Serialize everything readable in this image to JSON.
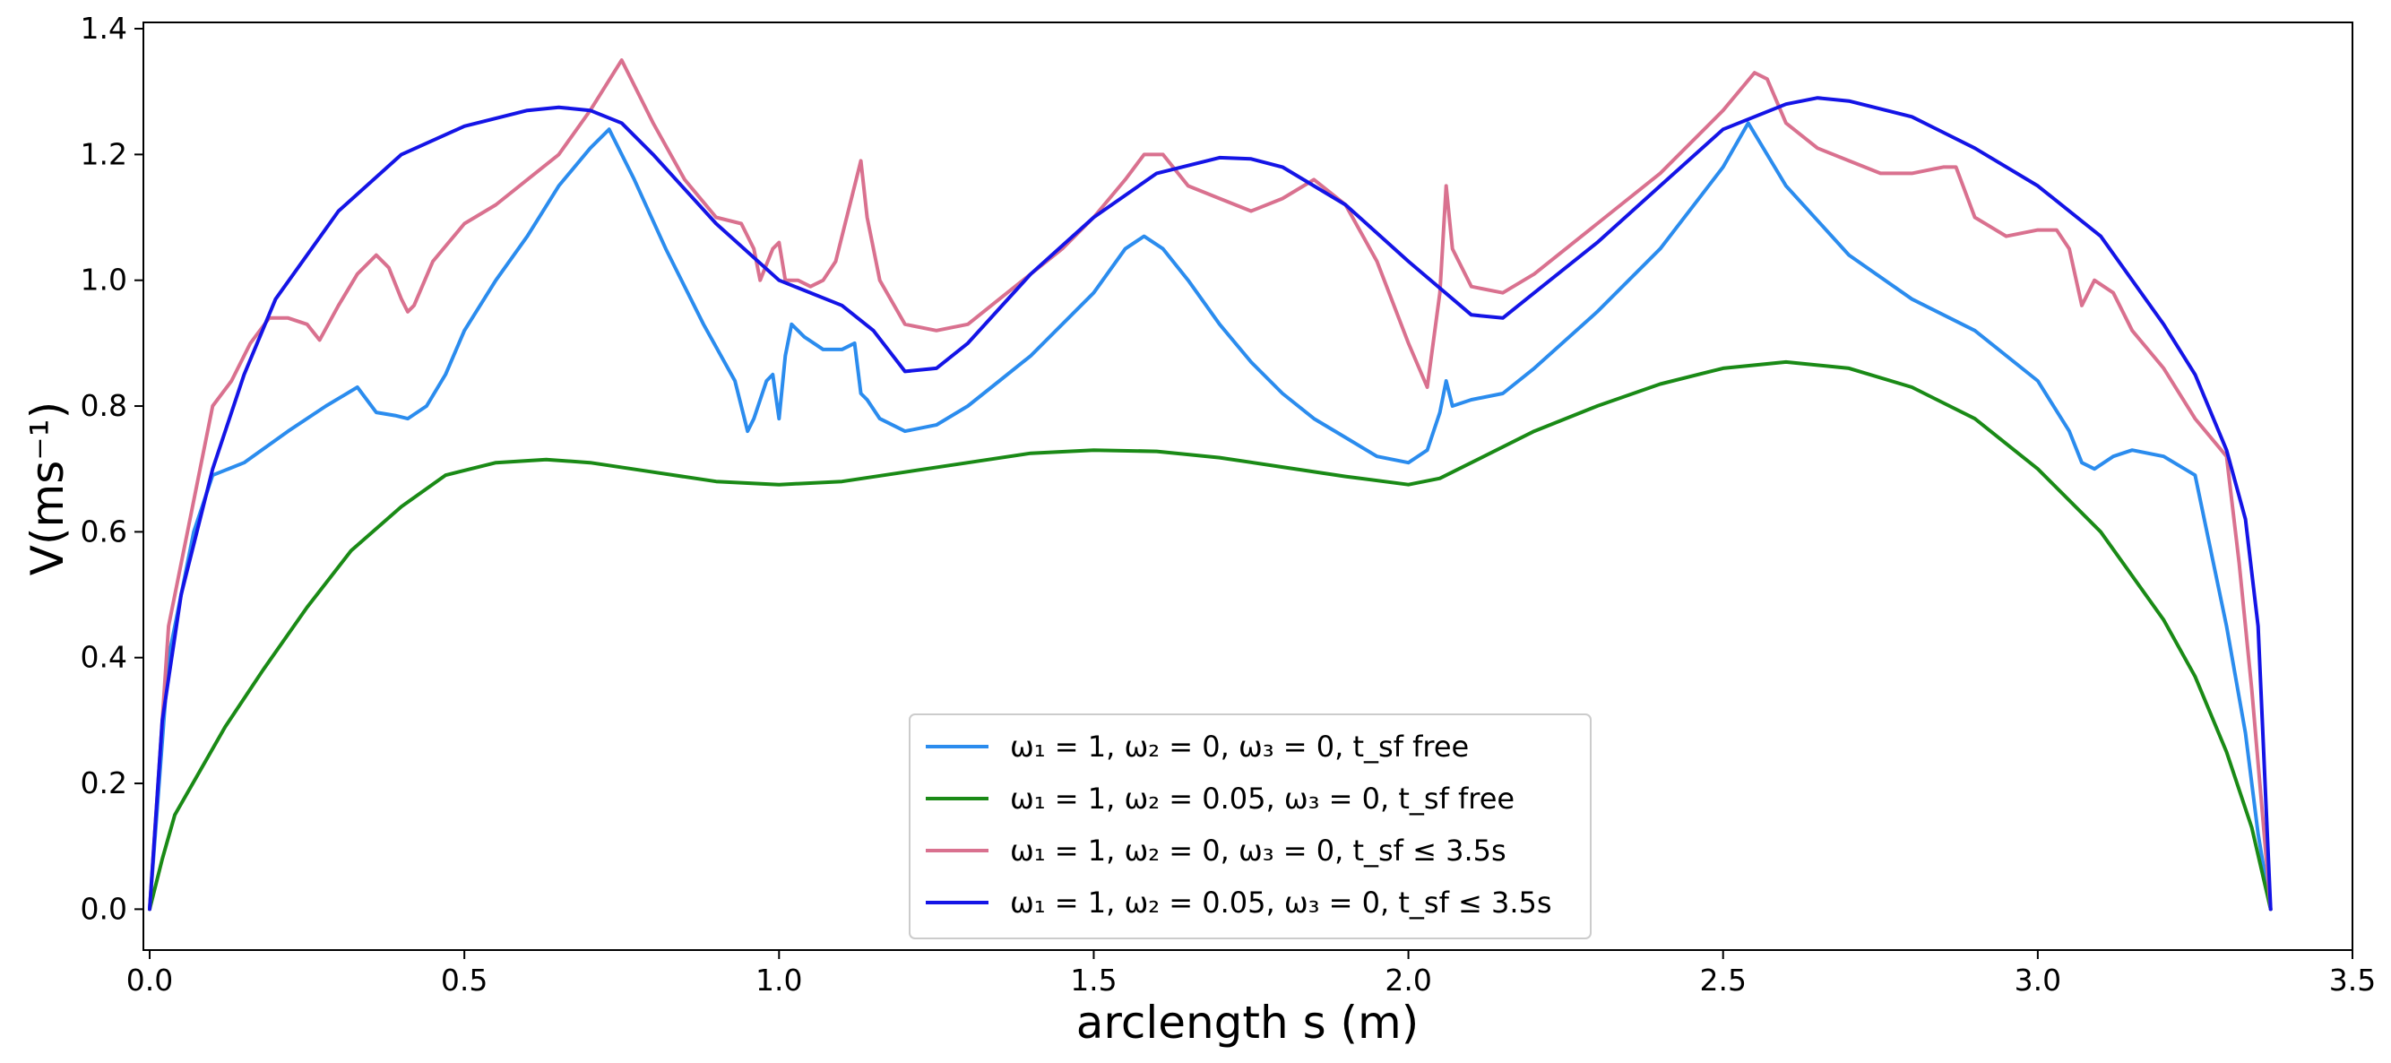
{
  "chart_data": {
    "type": "line",
    "title": "",
    "xlabel": "arclength s (m)",
    "ylabel": "V(ms⁻¹)",
    "xlim": [
      -0.01,
      3.5
    ],
    "ylim": [
      -0.065,
      1.41
    ],
    "xticks": [
      0.0,
      0.5,
      1.0,
      1.5,
      2.0,
      2.5,
      3.0,
      3.5
    ],
    "xtick_labels": [
      "0.0",
      "0.5",
      "1.0",
      "1.5",
      "2.0",
      "2.5",
      "3.0",
      "3.5"
    ],
    "yticks": [
      0.0,
      0.2,
      0.4,
      0.6,
      0.8,
      1.0,
      1.2,
      1.4
    ],
    "ytick_labels": [
      "0.0",
      "0.2",
      "0.4",
      "0.6",
      "0.8",
      "1.0",
      "1.2",
      "1.4"
    ],
    "legend_position": "lower-center",
    "series": [
      {
        "name": "ω₁ = 1, ω₂ = 0, ω₃ = 0, t_sf free",
        "color": "#2b8cee",
        "x": [
          0,
          0.03,
          0.07,
          0.1,
          0.15,
          0.22,
          0.28,
          0.33,
          0.36,
          0.39,
          0.41,
          0.44,
          0.47,
          0.5,
          0.55,
          0.6,
          0.65,
          0.7,
          0.73,
          0.77,
          0.82,
          0.88,
          0.93,
          0.95,
          0.96,
          0.98,
          0.99,
          1.0,
          1.01,
          1.02,
          1.04,
          1.07,
          1.1,
          1.12,
          1.13,
          1.14,
          1.16,
          1.2,
          1.25,
          1.3,
          1.35,
          1.4,
          1.45,
          1.5,
          1.55,
          1.58,
          1.61,
          1.65,
          1.7,
          1.75,
          1.8,
          1.85,
          1.9,
          1.95,
          2.0,
          2.03,
          2.05,
          2.06,
          2.07,
          2.1,
          2.15,
          2.2,
          2.3,
          2.4,
          2.5,
          2.54,
          2.6,
          2.7,
          2.8,
          2.9,
          3.0,
          3.05,
          3.07,
          3.09,
          3.12,
          3.15,
          3.2,
          3.25,
          3.3,
          3.33,
          3.35,
          3.37
        ],
        "values": [
          0,
          0.4,
          0.6,
          0.69,
          0.71,
          0.76,
          0.8,
          0.83,
          0.79,
          0.785,
          0.78,
          0.8,
          0.85,
          0.92,
          1.0,
          1.07,
          1.15,
          1.21,
          1.24,
          1.16,
          1.05,
          0.93,
          0.84,
          0.76,
          0.78,
          0.84,
          0.85,
          0.78,
          0.88,
          0.93,
          0.91,
          0.89,
          0.89,
          0.9,
          0.82,
          0.81,
          0.78,
          0.76,
          0.77,
          0.8,
          0.84,
          0.88,
          0.93,
          0.98,
          1.05,
          1.07,
          1.05,
          1.0,
          0.93,
          0.87,
          0.82,
          0.78,
          0.75,
          0.72,
          0.71,
          0.73,
          0.79,
          0.84,
          0.8,
          0.81,
          0.82,
          0.86,
          0.95,
          1.05,
          1.18,
          1.25,
          1.15,
          1.04,
          0.97,
          0.92,
          0.84,
          0.76,
          0.71,
          0.7,
          0.72,
          0.73,
          0.72,
          0.69,
          0.45,
          0.28,
          0.12,
          0
        ]
      },
      {
        "name": "ω₁ = 1, ω₂ = 0.05, ω₃ = 0, t_sf free",
        "color": "#1a8a16",
        "x": [
          0,
          0.02,
          0.04,
          0.08,
          0.12,
          0.18,
          0.25,
          0.32,
          0.4,
          0.47,
          0.55,
          0.63,
          0.7,
          0.8,
          0.9,
          1.0,
          1.1,
          1.2,
          1.3,
          1.4,
          1.5,
          1.6,
          1.7,
          1.8,
          1.9,
          2.0,
          2.05,
          2.1,
          2.2,
          2.3,
          2.4,
          2.5,
          2.6,
          2.7,
          2.8,
          2.9,
          3.0,
          3.1,
          3.2,
          3.25,
          3.3,
          3.34,
          3.37
        ],
        "values": [
          0,
          0.08,
          0.15,
          0.22,
          0.29,
          0.38,
          0.48,
          0.57,
          0.64,
          0.69,
          0.71,
          0.715,
          0.71,
          0.695,
          0.68,
          0.675,
          0.68,
          0.695,
          0.71,
          0.725,
          0.73,
          0.728,
          0.718,
          0.703,
          0.688,
          0.675,
          0.685,
          0.71,
          0.76,
          0.8,
          0.835,
          0.86,
          0.87,
          0.86,
          0.83,
          0.78,
          0.7,
          0.6,
          0.46,
          0.37,
          0.25,
          0.13,
          0
        ]
      },
      {
        "name": "ω₁ = 1, ω₂ = 0, ω₃ = 0, t_sf ≤ 3.5s",
        "color": "#d9718f",
        "x": [
          0,
          0.03,
          0.06,
          0.1,
          0.13,
          0.16,
          0.19,
          0.22,
          0.25,
          0.27,
          0.3,
          0.33,
          0.36,
          0.38,
          0.4,
          0.41,
          0.42,
          0.45,
          0.5,
          0.55,
          0.6,
          0.65,
          0.7,
          0.75,
          0.8,
          0.85,
          0.9,
          0.94,
          0.96,
          0.97,
          0.99,
          1.0,
          1.01,
          1.03,
          1.05,
          1.07,
          1.09,
          1.12,
          1.13,
          1.14,
          1.16,
          1.2,
          1.25,
          1.3,
          1.35,
          1.4,
          1.45,
          1.5,
          1.55,
          1.58,
          1.61,
          1.65,
          1.7,
          1.75,
          1.8,
          1.85,
          1.9,
          1.95,
          2.0,
          2.03,
          2.05,
          2.06,
          2.07,
          2.1,
          2.15,
          2.2,
          2.3,
          2.4,
          2.45,
          2.5,
          2.55,
          2.57,
          2.6,
          2.65,
          2.7,
          2.75,
          2.8,
          2.85,
          2.87,
          2.9,
          2.95,
          3.0,
          3.03,
          3.05,
          3.07,
          3.09,
          3.12,
          3.15,
          3.2,
          3.25,
          3.3,
          3.32,
          3.34,
          3.37
        ],
        "values": [
          0,
          0.45,
          0.6,
          0.8,
          0.84,
          0.9,
          0.94,
          0.94,
          0.93,
          0.905,
          0.96,
          1.01,
          1.04,
          1.02,
          0.97,
          0.95,
          0.96,
          1.03,
          1.09,
          1.12,
          1.16,
          1.2,
          1.27,
          1.35,
          1.25,
          1.16,
          1.1,
          1.09,
          1.05,
          1.0,
          1.05,
          1.06,
          1.0,
          1.0,
          0.99,
          1.0,
          1.03,
          1.15,
          1.19,
          1.1,
          1.0,
          0.93,
          0.92,
          0.93,
          0.97,
          1.01,
          1.05,
          1.1,
          1.16,
          1.2,
          1.2,
          1.15,
          1.13,
          1.11,
          1.13,
          1.16,
          1.12,
          1.03,
          0.9,
          0.83,
          0.98,
          1.15,
          1.05,
          0.99,
          0.98,
          1.01,
          1.09,
          1.17,
          1.22,
          1.27,
          1.33,
          1.32,
          1.25,
          1.21,
          1.19,
          1.17,
          1.17,
          1.18,
          1.18,
          1.1,
          1.07,
          1.08,
          1.08,
          1.05,
          0.96,
          1.0,
          0.98,
          0.92,
          0.86,
          0.78,
          0.72,
          0.55,
          0.35,
          0
        ]
      },
      {
        "name": "ω₁ = 1, ω₂ = 0.05, ω₃ = 0, t_sf ≤ 3.5s",
        "color": "#1414e6",
        "x": [
          0,
          0.02,
          0.05,
          0.1,
          0.15,
          0.2,
          0.3,
          0.4,
          0.5,
          0.6,
          0.65,
          0.7,
          0.75,
          0.8,
          0.9,
          1.0,
          1.1,
          1.15,
          1.2,
          1.25,
          1.3,
          1.4,
          1.5,
          1.6,
          1.7,
          1.75,
          1.8,
          1.9,
          2.0,
          2.1,
          2.15,
          2.2,
          2.3,
          2.4,
          2.5,
          2.6,
          2.65,
          2.7,
          2.8,
          2.9,
          3.0,
          3.1,
          3.2,
          3.25,
          3.3,
          3.33,
          3.35,
          3.37
        ],
        "values": [
          0,
          0.3,
          0.5,
          0.7,
          0.85,
          0.97,
          1.11,
          1.2,
          1.245,
          1.27,
          1.275,
          1.27,
          1.25,
          1.2,
          1.09,
          1.0,
          0.96,
          0.92,
          0.855,
          0.86,
          0.9,
          1.01,
          1.1,
          1.17,
          1.195,
          1.193,
          1.18,
          1.12,
          1.03,
          0.945,
          0.94,
          0.98,
          1.06,
          1.15,
          1.24,
          1.28,
          1.29,
          1.285,
          1.26,
          1.21,
          1.15,
          1.07,
          0.93,
          0.85,
          0.73,
          0.62,
          0.45,
          0
        ]
      }
    ]
  }
}
